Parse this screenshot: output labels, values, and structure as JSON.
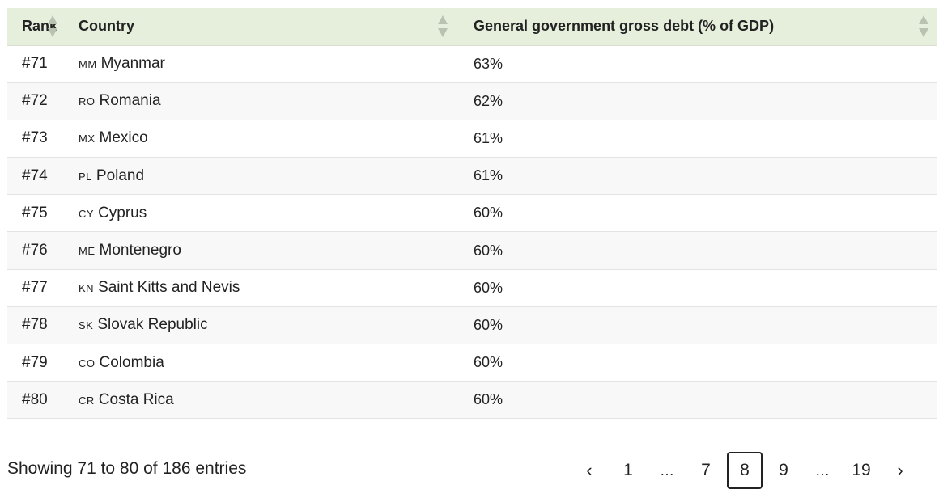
{
  "table": {
    "headers": {
      "rank": "Rank",
      "country": "Country",
      "debt": "General government gross debt (% of GDP)"
    },
    "rows": [
      {
        "rank": "#71",
        "code": "MM",
        "country": "Myanmar",
        "debt": "63%"
      },
      {
        "rank": "#72",
        "code": "RO",
        "country": "Romania",
        "debt": "62%"
      },
      {
        "rank": "#73",
        "code": "MX",
        "country": "Mexico",
        "debt": "61%"
      },
      {
        "rank": "#74",
        "code": "PL",
        "country": "Poland",
        "debt": "61%"
      },
      {
        "rank": "#75",
        "code": "CY",
        "country": "Cyprus",
        "debt": "60%"
      },
      {
        "rank": "#76",
        "code": "ME",
        "country": "Montenegro",
        "debt": "60%"
      },
      {
        "rank": "#77",
        "code": "KN",
        "country": "Saint Kitts and Nevis",
        "debt": "60%"
      },
      {
        "rank": "#78",
        "code": "SK",
        "country": "Slovak Republic",
        "debt": "60%"
      },
      {
        "rank": "#79",
        "code": "CO",
        "country": "Colombia",
        "debt": "60%"
      },
      {
        "rank": "#80",
        "code": "CR",
        "country": "Costa Rica",
        "debt": "60%"
      }
    ]
  },
  "footer": {
    "info": "Showing 71 to 80 of 186 entries"
  },
  "pagination": {
    "prev": "‹",
    "next": "›",
    "pages": [
      "1",
      "…",
      "7",
      "8",
      "9",
      "…",
      "19"
    ],
    "current": "8"
  }
}
